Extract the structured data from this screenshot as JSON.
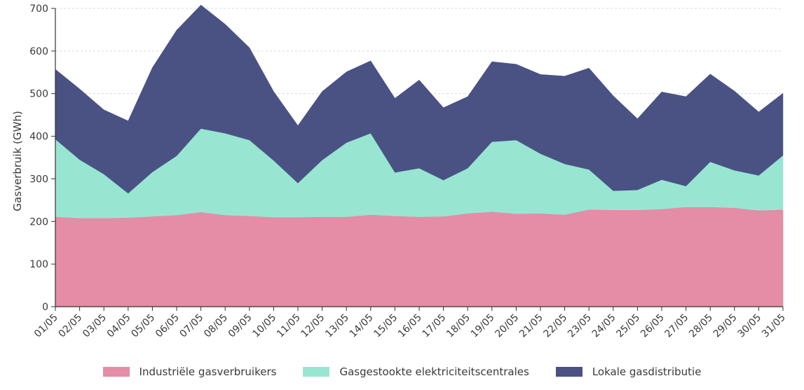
{
  "chart_data": {
    "type": "area",
    "stacked": true,
    "ylabel": "Gasverbruik (GWh)",
    "xlabel": "",
    "ylim": [
      0,
      700
    ],
    "yticks": [
      0,
      100,
      200,
      300,
      400,
      500,
      600,
      700
    ],
    "grid": "horizontal dashed",
    "legend_position": "bottom",
    "categories": [
      "01/05",
      "02/05",
      "03/05",
      "04/05",
      "05/05",
      "06/05",
      "07/05",
      "08/05",
      "09/05",
      "10/05",
      "11/05",
      "12/05",
      "13/05",
      "14/05",
      "15/05",
      "16/05",
      "17/05",
      "18/05",
      "19/05",
      "20/05",
      "21/05",
      "22/05",
      "23/05",
      "24/05",
      "25/05",
      "26/05",
      "27/05",
      "28/05",
      "29/05",
      "30/05",
      "31/05"
    ],
    "series": [
      {
        "name": "Industriële gasverbruikers",
        "color": "#e58ca6",
        "values": [
          211,
          208,
          208,
          209,
          212,
          215,
          222,
          215,
          213,
          210,
          210,
          211,
          211,
          216,
          213,
          211,
          212,
          219,
          223,
          218,
          219,
          216,
          228,
          227,
          227,
          229,
          234,
          234,
          232,
          226,
          228
        ]
      },
      {
        "name": "Gasgestookte elektriciteitscentrales",
        "color": "#98e6d2",
        "values": [
          182,
          137,
          103,
          57,
          104,
          139,
          196,
          192,
          178,
          133,
          80,
          133,
          174,
          191,
          102,
          114,
          85,
          106,
          164,
          173,
          140,
          119,
          94,
          45,
          47,
          69,
          49,
          106,
          88,
          82,
          127
        ]
      },
      {
        "name": "Lokale gasdistributie",
        "color": "#4a5283",
        "values": [
          164,
          166,
          151,
          170,
          245,
          295,
          290,
          256,
          217,
          162,
          135,
          161,
          166,
          170,
          174,
          207,
          170,
          168,
          188,
          178,
          186,
          206,
          238,
          223,
          167,
          206,
          210,
          206,
          186,
          149,
          146
        ]
      }
    ]
  }
}
